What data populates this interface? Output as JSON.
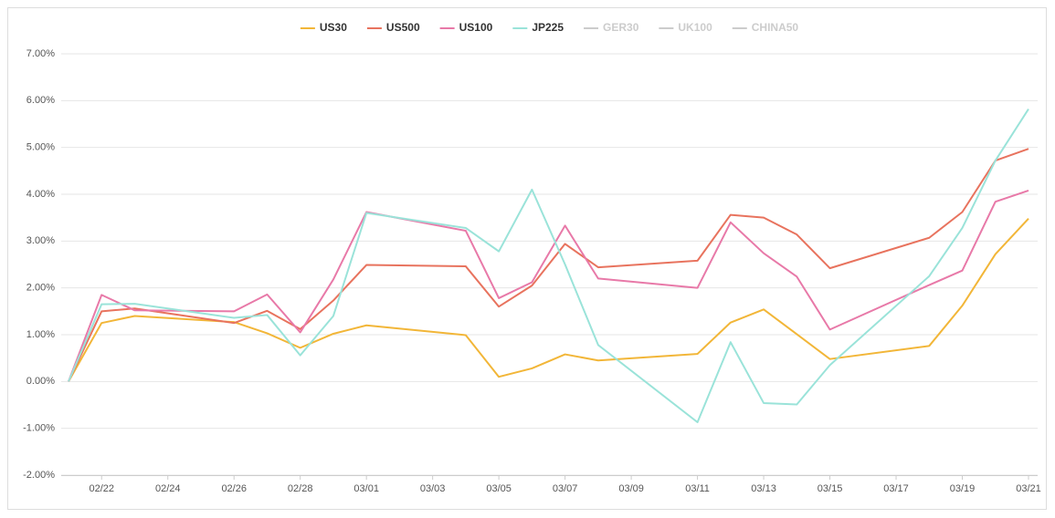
{
  "chart_data": {
    "type": "line",
    "x": [
      "02/21",
      "02/22",
      "02/23",
      "02/26",
      "02/27",
      "02/28",
      "02/29",
      "03/01",
      "03/04",
      "03/05",
      "03/06",
      "03/07",
      "03/08",
      "03/11",
      "03/12",
      "03/13",
      "03/14",
      "03/15",
      "03/18",
      "03/19",
      "03/20",
      "03/21"
    ],
    "series": [
      {
        "name": "US30",
        "color": "#f2b638",
        "values": [
          0,
          1.25,
          1.4,
          1.27,
          1.03,
          0.72,
          1.02,
          1.2,
          0.99,
          0.1,
          0.28,
          0.58,
          0.45,
          0.59,
          1.26,
          1.54,
          1.01,
          0.48,
          0.76,
          1.62,
          2.72,
          3.48
        ]
      },
      {
        "name": "US500",
        "color": "#e8735e",
        "values": [
          0,
          1.5,
          1.56,
          1.25,
          1.51,
          1.12,
          1.73,
          2.49,
          2.46,
          1.6,
          2.05,
          2.94,
          2.44,
          2.58,
          3.56,
          3.5,
          3.14,
          2.42,
          3.07,
          3.62,
          4.72,
          4.97
        ]
      },
      {
        "name": "US100",
        "color": "#e879a8",
        "values": [
          0,
          1.85,
          1.52,
          1.5,
          1.86,
          1.05,
          2.18,
          3.62,
          3.22,
          1.78,
          2.12,
          3.33,
          2.2,
          2.0,
          3.4,
          2.74,
          2.24,
          1.11,
          2.06,
          2.37,
          3.84,
          4.08
        ]
      },
      {
        "name": "JP225",
        "color": "#9ae3d9",
        "values": [
          0,
          1.65,
          1.66,
          1.36,
          1.42,
          0.56,
          1.4,
          3.6,
          3.28,
          2.78,
          4.1,
          2.5,
          0.78,
          -0.87,
          0.84,
          -0.46,
          -0.49,
          0.35,
          2.25,
          3.28,
          4.72,
          5.82
        ]
      }
    ],
    "inactive_series": [
      "GER30",
      "UK100",
      "CHINA50"
    ],
    "inactive_color": "#cccccc",
    "xlim": [
      "02/21",
      "03/21"
    ],
    "xticks": [
      "02/22",
      "02/24",
      "02/26",
      "02/28",
      "03/01",
      "03/03",
      "03/05",
      "03/07",
      "03/09",
      "03/11",
      "03/13",
      "03/15",
      "03/17",
      "03/19",
      "03/21"
    ],
    "ylim": [
      -2,
      7
    ],
    "yticks": [
      {
        "value": -2,
        "label": "-2.00%"
      },
      {
        "value": -1,
        "label": "-1.00%"
      },
      {
        "value": 0,
        "label": "0.00%"
      },
      {
        "value": 1,
        "label": "1.00%"
      },
      {
        "value": 2,
        "label": "2.00%"
      },
      {
        "value": 3,
        "label": "3.00%"
      },
      {
        "value": 4,
        "label": "4.00%"
      },
      {
        "value": 5,
        "label": "5.00%"
      },
      {
        "value": 6,
        "label": "6.00%"
      },
      {
        "value": 7,
        "label": "7.00%"
      }
    ],
    "grid": true,
    "legend": "top"
  }
}
